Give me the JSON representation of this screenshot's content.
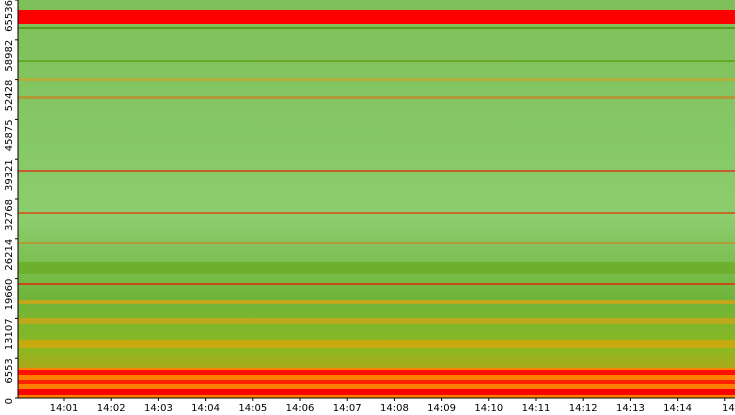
{
  "chart_data": {
    "type": "heatmap",
    "categories": [
      "14:01",
      "14:02",
      "14:03",
      "14:04",
      "14:05",
      "14:06",
      "14:07",
      "14:08",
      "14:09",
      "14:10",
      "14:11",
      "14:12",
      "14:13",
      "14:14",
      "14"
    ],
    "ylim": [
      0,
      65536
    ],
    "yticks": [
      0,
      6553,
      13107,
      19660,
      26214,
      32768,
      39321,
      45875,
      52428,
      58982,
      65536
    ]
  }
}
